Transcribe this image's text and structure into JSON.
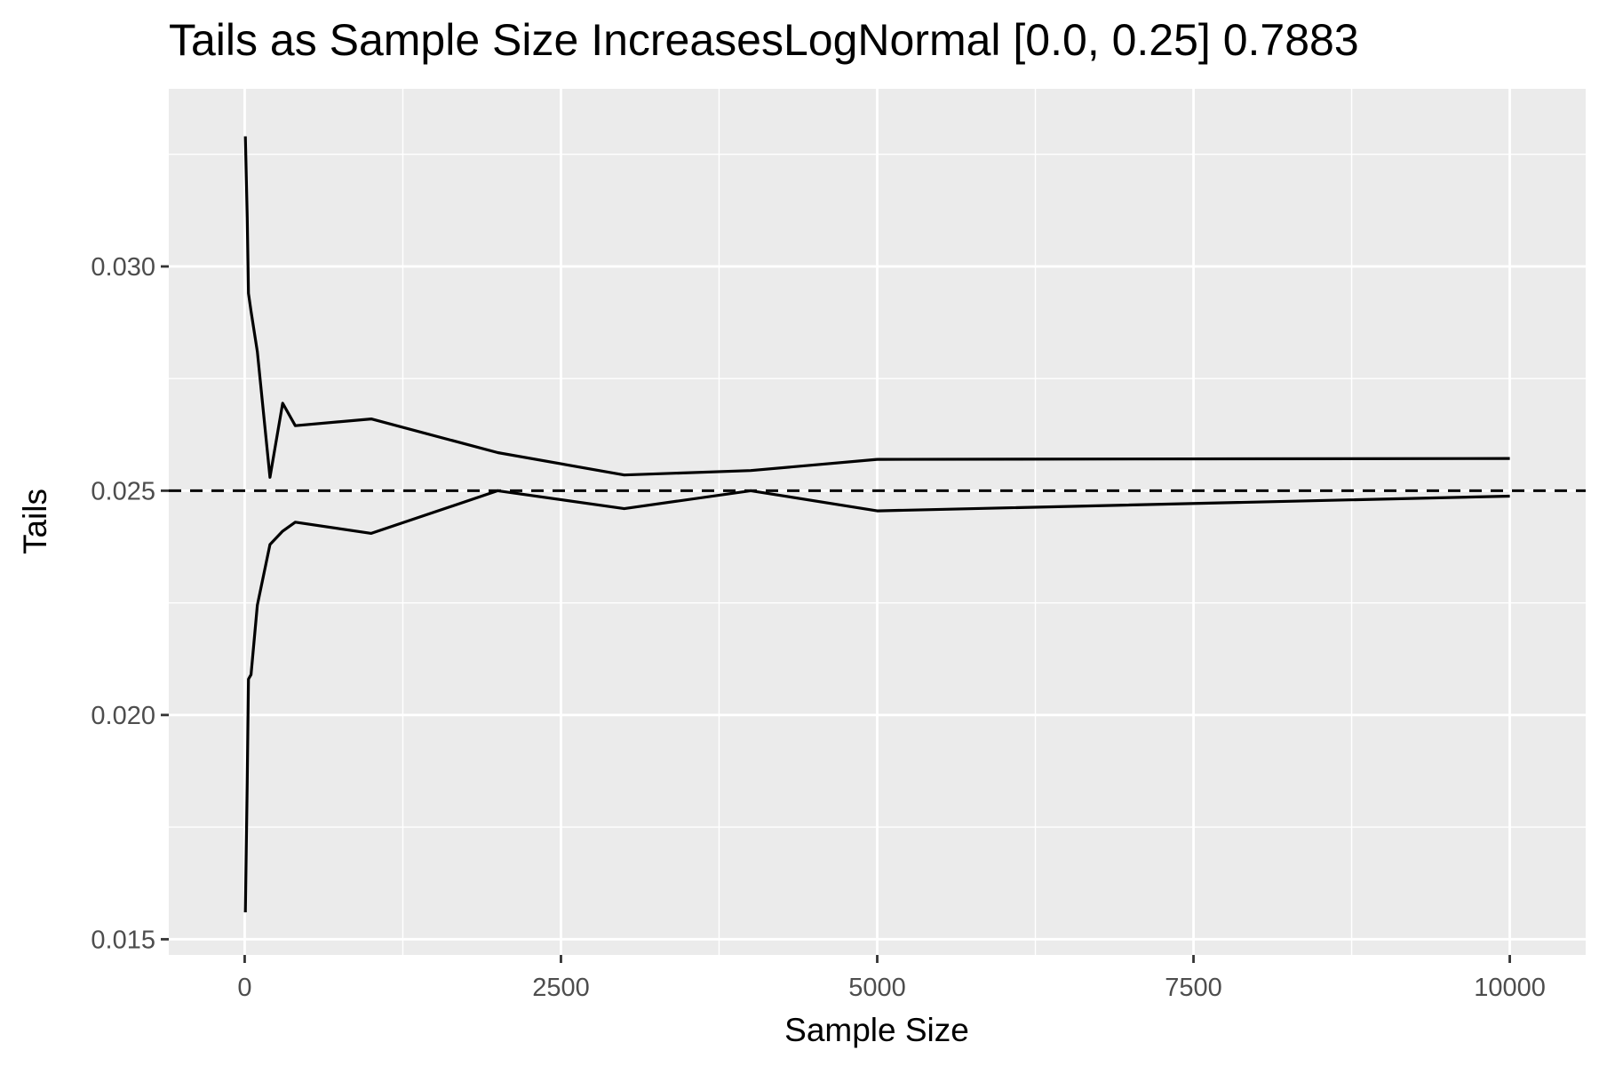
{
  "chart_data": {
    "type": "line",
    "title": "Tails as Sample Size IncreasesLogNormal [0.0, 0.25] 0.7883",
    "xlabel": "Sample Size",
    "ylabel": "Tails",
    "xlim": [
      -600,
      10600
    ],
    "ylim": [
      0.01465,
      0.03396
    ],
    "x_ticks": [
      0,
      2500,
      5000,
      7500,
      10000
    ],
    "x_tick_labels": [
      "0",
      "2500",
      "5000",
      "7500",
      "10000"
    ],
    "y_ticks": [
      0.015,
      0.02,
      0.025,
      0.03
    ],
    "y_tick_labels": [
      "0.015",
      "0.020",
      "0.025",
      "0.030"
    ],
    "grid": true,
    "reference_line": {
      "y": 0.025,
      "style": "dashed"
    },
    "series": [
      {
        "x": [
          5,
          20,
          30,
          50,
          100,
          200,
          300,
          400,
          1000,
          2000,
          3000,
          4000,
          5000,
          10000
        ],
        "y": [
          0.0329,
          0.0311,
          0.0294,
          0.029,
          0.0281,
          0.0253,
          0.02695,
          0.02645,
          0.0266,
          0.02585,
          0.02535,
          0.02545,
          0.0257,
          0.02572
        ]
      },
      {
        "x": [
          5,
          20,
          30,
          50,
          100,
          200,
          300,
          400,
          1000,
          2000,
          3000,
          4000,
          5000,
          10000
        ],
        "y": [
          0.0156,
          0.0185,
          0.0208,
          0.0209,
          0.02245,
          0.0238,
          0.0241,
          0.0243,
          0.02405,
          0.025,
          0.0246,
          0.025,
          0.02455,
          0.02488
        ]
      }
    ]
  }
}
